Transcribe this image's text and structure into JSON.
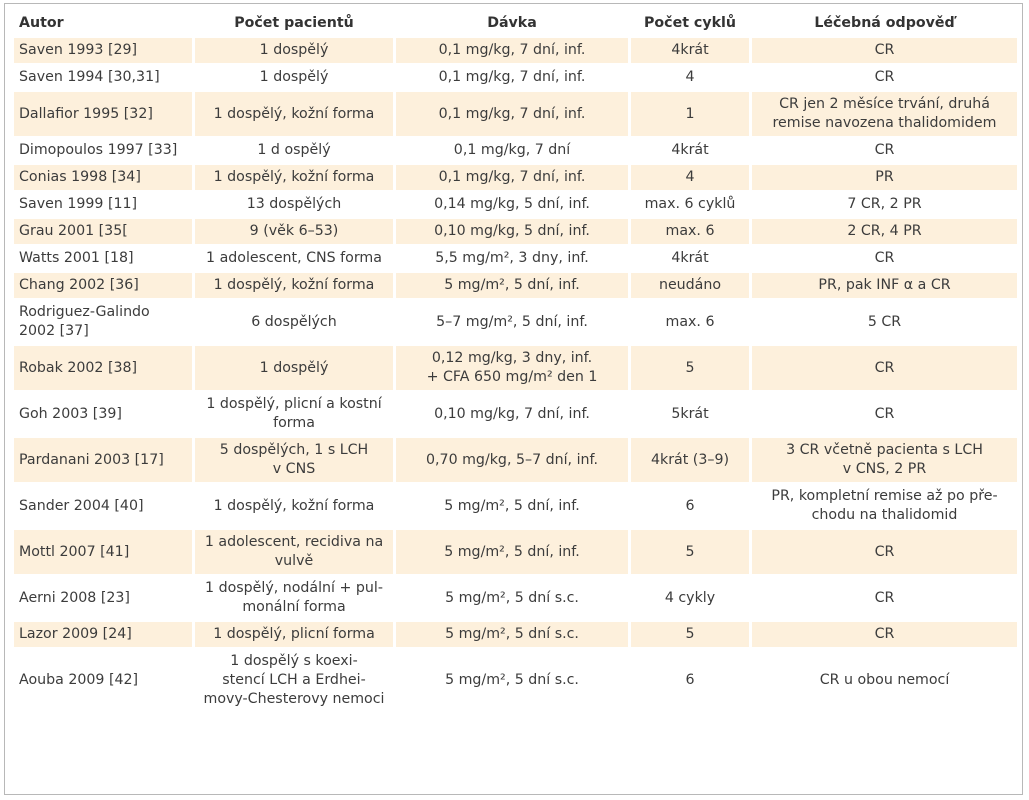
{
  "headers": {
    "author": "Autor",
    "patients": "Počet pacientů",
    "dose": "Dávka",
    "cycles": "Počet cyklů",
    "response": "Léčebná odpověď"
  },
  "colors": {
    "shade": "#fdf0dc",
    "text": "#3c3c3c",
    "border": "#b8b8b8"
  },
  "rows": [
    {
      "author": "Saven 1993 [29]",
      "patients": "1 dospělý",
      "dose": "0,1 mg/kg, 7 dní, inf.",
      "cycles": "4krát",
      "response": "CR"
    },
    {
      "author": "Saven 1994 [30,31]",
      "patients": "1 dospělý",
      "dose": "0,1 mg/kg, 7 dní, inf.",
      "cycles": "4",
      "response": "CR"
    },
    {
      "author": "Dallafior 1995 [32]",
      "patients": "1 dospělý, kožní forma",
      "dose": "0,1 mg/kg, 7 dní, inf.",
      "cycles": "1",
      "response": [
        "CR jen 2 měsíce trvání, druhá",
        "remise navozena thalidomidem"
      ]
    },
    {
      "author": "Dimopoulos 1997 [33]",
      "patients": "1 d ospělý",
      "dose": "0,1 mg/kg, 7 dní",
      "cycles": "4krát",
      "response": "CR"
    },
    {
      "author": "Conias 1998 [34]",
      "patients": "1 dospělý, kožní forma",
      "dose": "0,1 mg/kg, 7 dní, inf.",
      "cycles": "4",
      "response": "PR"
    },
    {
      "author": "Saven 1999 [11]",
      "patients": "13 dospělých",
      "dose": "0,14 mg/kg, 5 dní, inf.",
      "cycles": "max. 6 cyklů",
      "response": "7 CR, 2 PR"
    },
    {
      "author": "Grau 2001 [35[",
      "patients": "9 (věk 6–53)",
      "dose": "0,10 mg/kg, 5 dní, inf.",
      "cycles": "max. 6",
      "response": "2 CR, 4 PR"
    },
    {
      "author": "Watts 2001 [18]",
      "patients": "1 adolescent, CNS forma",
      "dose": "5,5 mg/m², 3 dny, inf.",
      "cycles": "4krát",
      "response": "CR"
    },
    {
      "author": "Chang 2002 [36]",
      "patients": "1 dospělý, kožní forma",
      "dose": "5 mg/m², 5 dní, inf.",
      "cycles": "neudáno",
      "response": "PR, pak INF α a CR"
    },
    {
      "author": [
        "Rodriguez-Galindo",
        "2002 [37]"
      ],
      "patients": "6 dospělých",
      "dose": "5–7 mg/m², 5 dní, inf.",
      "cycles": "max. 6",
      "response": "5 CR"
    },
    {
      "author": "Robak 2002 [38]",
      "patients": "1 dospělý",
      "dose": [
        "0,12 mg/kg, 3 dny, inf.",
        "+ CFA 650 mg/m² den 1"
      ],
      "cycles": "5",
      "response": "CR"
    },
    {
      "author": "Goh 2003 [39]",
      "patients": [
        "1 dospělý, plicní a kostní",
        "forma"
      ],
      "dose": "0,10 mg/kg, 7 dní, inf.",
      "cycles": "5krát",
      "response": "CR"
    },
    {
      "author": "Pardanani 2003 [17]",
      "patients": [
        "5 dospělých, 1 s LCH",
        "v CNS"
      ],
      "dose": "0,70 mg/kg, 5–7 dní, inf.",
      "cycles": "4krát (3–9)",
      "response": [
        "3 CR včetně pacienta s LCH",
        "v CNS, 2 PR"
      ]
    },
    {
      "author": "Sander 2004 [40]",
      "patients": "1 dospělý, kožní forma",
      "dose": "5 mg/m², 5 dní, inf.",
      "cycles": "6",
      "response": [
        "PR, kompletní remise až po pře-",
        "chodu na thalidomid"
      ]
    },
    {
      "author": "Mottl 2007 [41]",
      "patients": [
        "1 adolescent, recidiva na",
        "vulvě"
      ],
      "dose": "5 mg/m², 5 dní, inf.",
      "cycles": "5",
      "response": "CR"
    },
    {
      "author": "Aerni 2008 [23]",
      "patients": [
        "1 dospělý, nodální + pul-",
        "monální forma"
      ],
      "dose": "5 mg/m², 5 dní s.c.",
      "cycles": "4 cykly",
      "response": "CR"
    },
    {
      "author": "Lazor 2009 [24]",
      "patients": "1 dospělý, plicní forma",
      "dose": "5 mg/m², 5 dní s.c.",
      "cycles": "5",
      "response": "CR"
    },
    {
      "author": "Aouba 2009 [42]",
      "patients": [
        "1 dospělý s koexi-",
        "stencí LCH a Erdhei-",
        "movy-Chesterovy nemoci"
      ],
      "dose": "5 mg/m², 5 dní s.c.",
      "cycles": "6",
      "response": "CR u obou nemocí"
    }
  ]
}
